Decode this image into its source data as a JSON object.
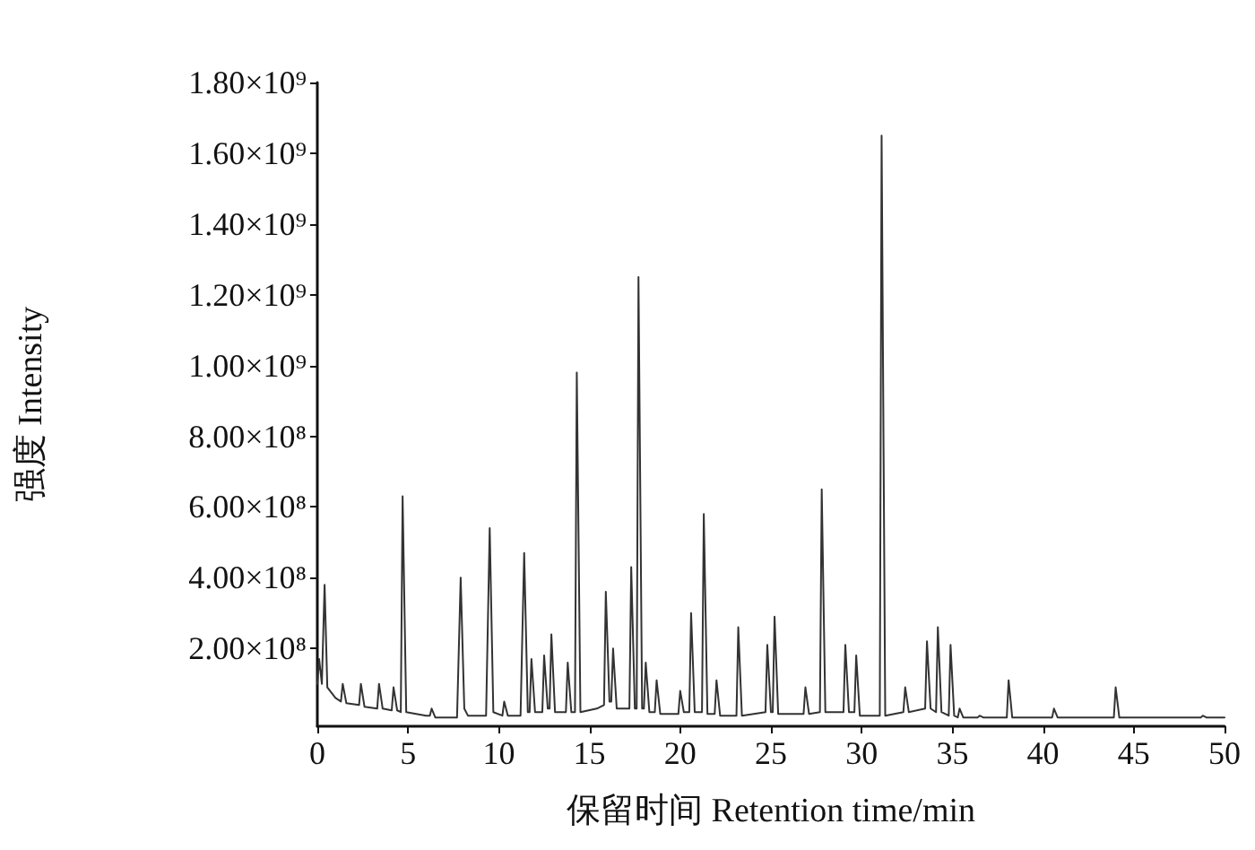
{
  "chart_data": {
    "type": "line",
    "xlabel": "保留时间 Retention time/min",
    "ylabel": "强度 Intensity",
    "xlim": [
      0,
      50
    ],
    "xticks": [
      0,
      5,
      10,
      15,
      20,
      25,
      30,
      35,
      40,
      45,
      50
    ],
    "ylim": [
      -20000000.0,
      1800000000.0
    ],
    "yticks": [
      {
        "value": 200000000.0,
        "label": "2.00×10⁸"
      },
      {
        "value": 400000000.0,
        "label": "4.00×10⁸"
      },
      {
        "value": 600000000.0,
        "label": "6.00×10⁸"
      },
      {
        "value": 800000000.0,
        "label": "8.00×10⁸"
      },
      {
        "value": 1000000000.0,
        "label": "1.00×10⁹"
      },
      {
        "value": 1200000000.0,
        "label": "1.20×10⁹"
      },
      {
        "value": 1400000000.0,
        "label": "1.40×10⁹"
      },
      {
        "value": 1600000000.0,
        "label": "1.60×10⁹"
      },
      {
        "value": 1800000000.0,
        "label": "1.80×10⁹"
      }
    ],
    "grid": false,
    "marker": "none",
    "line_style": "solid",
    "series": [
      {
        "color": "#333333",
        "x": [
          0,
          0.1,
          0.25,
          0.3,
          0.4,
          0.55,
          1.0,
          1.3,
          1.4,
          1.6,
          2.3,
          2.4,
          2.6,
          3.3,
          3.4,
          3.6,
          4.1,
          4.2,
          4.4,
          4.6,
          4.7,
          4.9,
          6.0,
          6.2,
          6.3,
          6.5,
          7.7,
          7.9,
          8.1,
          8.3,
          9.3,
          9.5,
          9.7,
          10.2,
          10.3,
          10.5,
          11.2,
          11.4,
          11.6,
          11.7,
          11.8,
          12.0,
          12.4,
          12.5,
          12.7,
          12.8,
          12.9,
          13.1,
          13.7,
          13.8,
          14.0,
          14.2,
          14.3,
          14.5,
          15.4,
          15.8,
          15.9,
          16.1,
          16.2,
          16.3,
          16.5,
          17.2,
          17.3,
          17.5,
          17.6,
          17.7,
          17.9,
          18.0,
          18.1,
          18.3,
          18.6,
          18.7,
          18.9,
          19.9,
          20.0,
          20.2,
          20.5,
          20.6,
          20.8,
          21.2,
          21.3,
          21.5,
          21.9,
          22.0,
          22.2,
          23.1,
          23.2,
          23.4,
          24.7,
          24.8,
          25.0,
          25.1,
          25.2,
          25.4,
          26.8,
          26.9,
          27.1,
          27.7,
          27.8,
          28.0,
          29.0,
          29.1,
          29.3,
          29.6,
          29.7,
          29.9,
          31.0,
          31.1,
          31.3,
          32.3,
          32.4,
          32.6,
          33.5,
          33.6,
          33.8,
          34.1,
          34.2,
          34.4,
          34.8,
          34.9,
          35.1,
          35.3,
          35.4,
          35.6,
          36.4,
          36.5,
          36.7,
          38.0,
          38.1,
          38.3,
          40.5,
          40.6,
          40.8,
          43.9,
          44.0,
          44.2,
          48.7,
          48.8,
          49,
          50
        ],
        "values": [
          100000000.0,
          170000000.0,
          100000000.0,
          100000000.0,
          380000000.0,
          90000000.0,
          60000000.0,
          50000000.0,
          100000000.0,
          45000000.0,
          40000000.0,
          100000000.0,
          35000000.0,
          30000000.0,
          100000000.0,
          30000000.0,
          25000000.0,
          90000000.0,
          25000000.0,
          20000000.0,
          630000000.0,
          20000000.0,
          10000000.0,
          10000000.0,
          30000000.0,
          5000000.0,
          5000000.0,
          400000000.0,
          30000000.0,
          10000000.0,
          10000000.0,
          540000000.0,
          20000000.0,
          10000000.0,
          50000000.0,
          10000000.0,
          10000000.0,
          470000000.0,
          20000000.0,
          20000000.0,
          170000000.0,
          20000000.0,
          20000000.0,
          180000000.0,
          30000000.0,
          30000000.0,
          240000000.0,
          20000000.0,
          20000000.0,
          160000000.0,
          20000000.0,
          20000000.0,
          980000000.0,
          20000000.0,
          30000000.0,
          40000000.0,
          360000000.0,
          50000000.0,
          50000000.0,
          200000000.0,
          30000000.0,
          30000000.0,
          430000000.0,
          30000000.0,
          30000000.0,
          1250000000.0,
          30000000.0,
          30000000.0,
          160000000.0,
          20000000.0,
          20000000.0,
          110000000.0,
          15000000.0,
          15000000.0,
          80000000.0,
          20000000.0,
          20000000.0,
          300000000.0,
          20000000.0,
          20000000.0,
          580000000.0,
          15000000.0,
          15000000.0,
          110000000.0,
          10000000.0,
          10000000.0,
          260000000.0,
          10000000.0,
          20000000.0,
          210000000.0,
          20000000.0,
          20000000.0,
          290000000.0,
          15000000.0,
          15000000.0,
          90000000.0,
          15000000.0,
          20000000.0,
          650000000.0,
          20000000.0,
          20000000.0,
          210000000.0,
          20000000.0,
          20000000.0,
          180000000.0,
          10000000.0,
          10000000.0,
          1650000000.0,
          10000000.0,
          20000000.0,
          90000000.0,
          20000000.0,
          30000000.0,
          220000000.0,
          30000000.0,
          20000000.0,
          260000000.0,
          20000000.0,
          10000000.0,
          210000000.0,
          10000000.0,
          5000000.0,
          30000000.0,
          5000000.0,
          5000000.0,
          10000000.0,
          5000000.0,
          5000000.0,
          110000000.0,
          5000000.0,
          5000000.0,
          30000000.0,
          5000000.0,
          5000000.0,
          90000000.0,
          5000000.0,
          5000000.0,
          10000000.0,
          5000000.0,
          5000000.0
        ]
      }
    ]
  }
}
